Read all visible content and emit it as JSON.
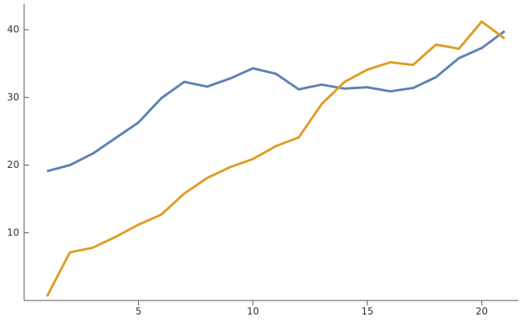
{
  "chart_data": {
    "type": "line",
    "x": [
      1,
      2,
      3,
      4,
      5,
      6,
      7,
      8,
      9,
      10,
      11,
      12,
      13,
      14,
      15,
      16,
      17,
      18,
      19,
      20,
      21
    ],
    "series": [
      {
        "color": "#5e81b5",
        "values": [
          19.1,
          20.0,
          21.7,
          24.0,
          26.3,
          29.9,
          32.3,
          31.6,
          32.8,
          34.3,
          33.5,
          31.2,
          31.9,
          31.3,
          31.5,
          30.9,
          31.4,
          33.0,
          35.8,
          37.3,
          39.8
        ]
      },
      {
        "color": "#e19c24",
        "values": [
          0.6,
          7.1,
          7.8,
          9.4,
          11.2,
          12.7,
          15.8,
          18.1,
          19.7,
          20.9,
          22.8,
          24.1,
          29.0,
          32.3,
          34.1,
          35.2,
          34.8,
          37.8,
          37.2,
          41.2,
          38.7
        ]
      }
    ],
    "xlim": [
      0,
      21.6
    ],
    "ylim": [
      0,
      43.8
    ],
    "xticks": [
      5,
      10,
      15,
      20
    ],
    "yticks": [
      10,
      20,
      30,
      40
    ]
  }
}
